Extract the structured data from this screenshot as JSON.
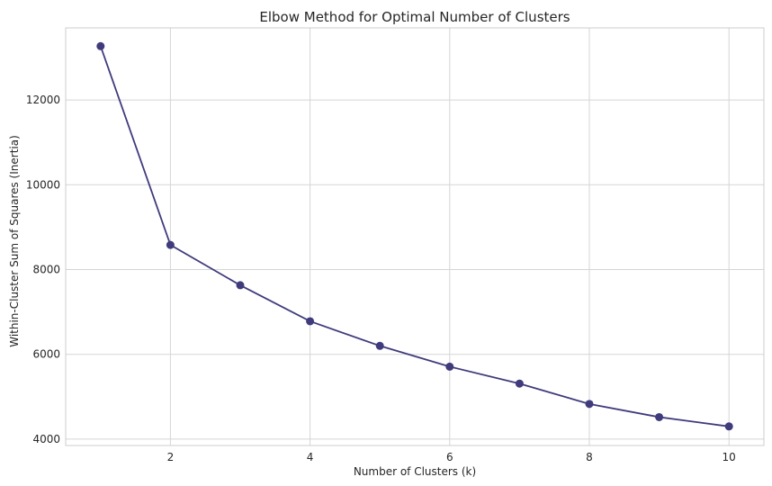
{
  "chart_data": {
    "type": "line",
    "title": "Elbow Method for Optimal Number of Clusters",
    "xlabel": "Number of Clusters (k)",
    "ylabel": "Within-Cluster Sum of Squares (Inertia)",
    "x": [
      1,
      2,
      3,
      4,
      5,
      6,
      7,
      8,
      9,
      10
    ],
    "series": [
      {
        "values": [
          13270,
          8580,
          7630,
          6780,
          6200,
          5710,
          5310,
          4830,
          4520,
          4300
        ]
      }
    ],
    "xlim": [
      0.5,
      10.5
    ],
    "ylim": [
      3850,
      13700
    ],
    "xticks": [
      2,
      4,
      6,
      8,
      10
    ],
    "yticks": [
      4000,
      6000,
      8000,
      10000,
      12000
    ],
    "grid": true,
    "line_color": "#3f3b7c",
    "marker": "circle"
  }
}
